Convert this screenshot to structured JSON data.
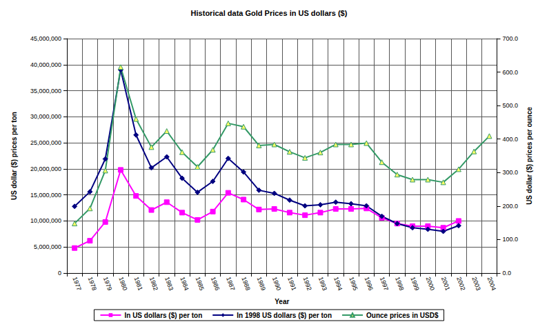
{
  "chart_data": {
    "type": "line",
    "title": "Historical data Gold Prices in US dollars ($)",
    "x_label": "Year",
    "y_label": "US dollar ($) prices per ton",
    "y2_label": "US dollar ($) prices per ounce",
    "categories": [
      "1977",
      "1978",
      "1979",
      "1980",
      "1981",
      "1982",
      "1983",
      "1984",
      "1985",
      "1986",
      "1987",
      "1988",
      "1989",
      "1990",
      "1991",
      "1992",
      "1993",
      "1994",
      "1995",
      "1996",
      "1997",
      "1998",
      "1999",
      "2000",
      "2001",
      "2002",
      "2003",
      "2004"
    ],
    "ylim": [
      0,
      45000000
    ],
    "yticks": [
      0,
      {
        "value": 5000000,
        "label": "5,000,000"
      },
      {
        "value": 10000000,
        "label": "10,000,000"
      },
      {
        "value": 15000000,
        "label": "15,000,000"
      },
      {
        "value": 20000000,
        "label": "20,000,000"
      },
      {
        "value": 25000000,
        "label": "25,000,000"
      },
      {
        "value": 30000000,
        "label": "30,000,000"
      },
      {
        "value": 35000000,
        "label": "35,000,000"
      },
      {
        "value": 40000000,
        "label": "40,000,000"
      },
      {
        "value": 45000000,
        "label": "45,000,000"
      }
    ],
    "y2lim": [
      0,
      700
    ],
    "y2ticks": [
      {
        "value": 0,
        "label": "0.0"
      },
      {
        "value": 100,
        "label": "100.0"
      },
      {
        "value": 200,
        "label": "200.0"
      },
      {
        "value": 300,
        "label": "300.0"
      },
      {
        "value": 400,
        "label": "400.0"
      },
      {
        "value": 500,
        "label": "500.0"
      },
      {
        "value": 600,
        "label": "600.0"
      },
      {
        "value": 700,
        "label": "700.0"
      }
    ],
    "grid": true,
    "legend": "bottom",
    "series": [
      {
        "name": "In US dollars ($) per ton",
        "color": "#ff00ff",
        "marker": "square",
        "values": [
          4800000,
          6200000,
          9800000,
          19800000,
          14800000,
          12100000,
          13600000,
          11600000,
          10200000,
          11800000,
          15400000,
          14100000,
          12200000,
          12300000,
          11600000,
          11100000,
          11600000,
          12300000,
          12300000,
          12400000,
          10600000,
          9500000,
          9000000,
          9000000,
          8700000,
          10000000,
          null,
          null
        ]
      },
      {
        "name": "In 1998 US dollars ($) per ton",
        "color": "#000080",
        "marker": "diamond",
        "values": [
          12800000,
          15600000,
          21900000,
          39000000,
          26500000,
          20200000,
          22300000,
          18200000,
          15500000,
          17600000,
          22000000,
          19400000,
          15900000,
          15300000,
          14000000,
          12900000,
          13100000,
          13600000,
          13300000,
          12900000,
          10900000,
          9500000,
          8700000,
          8400000,
          8000000,
          9100000,
          null,
          null
        ]
      },
      {
        "name": "Ounce prices in USD$",
        "color": "#339966",
        "marker": "triangle",
        "axis": "y2",
        "values": [
          148,
          193,
          306,
          615,
          460,
          376,
          424,
          361,
          317,
          368,
          447,
          437,
          381,
          384,
          362,
          344,
          360,
          384,
          384,
          388,
          331,
          294,
          279,
          279,
          271,
          310,
          363,
          409
        ]
      }
    ]
  }
}
